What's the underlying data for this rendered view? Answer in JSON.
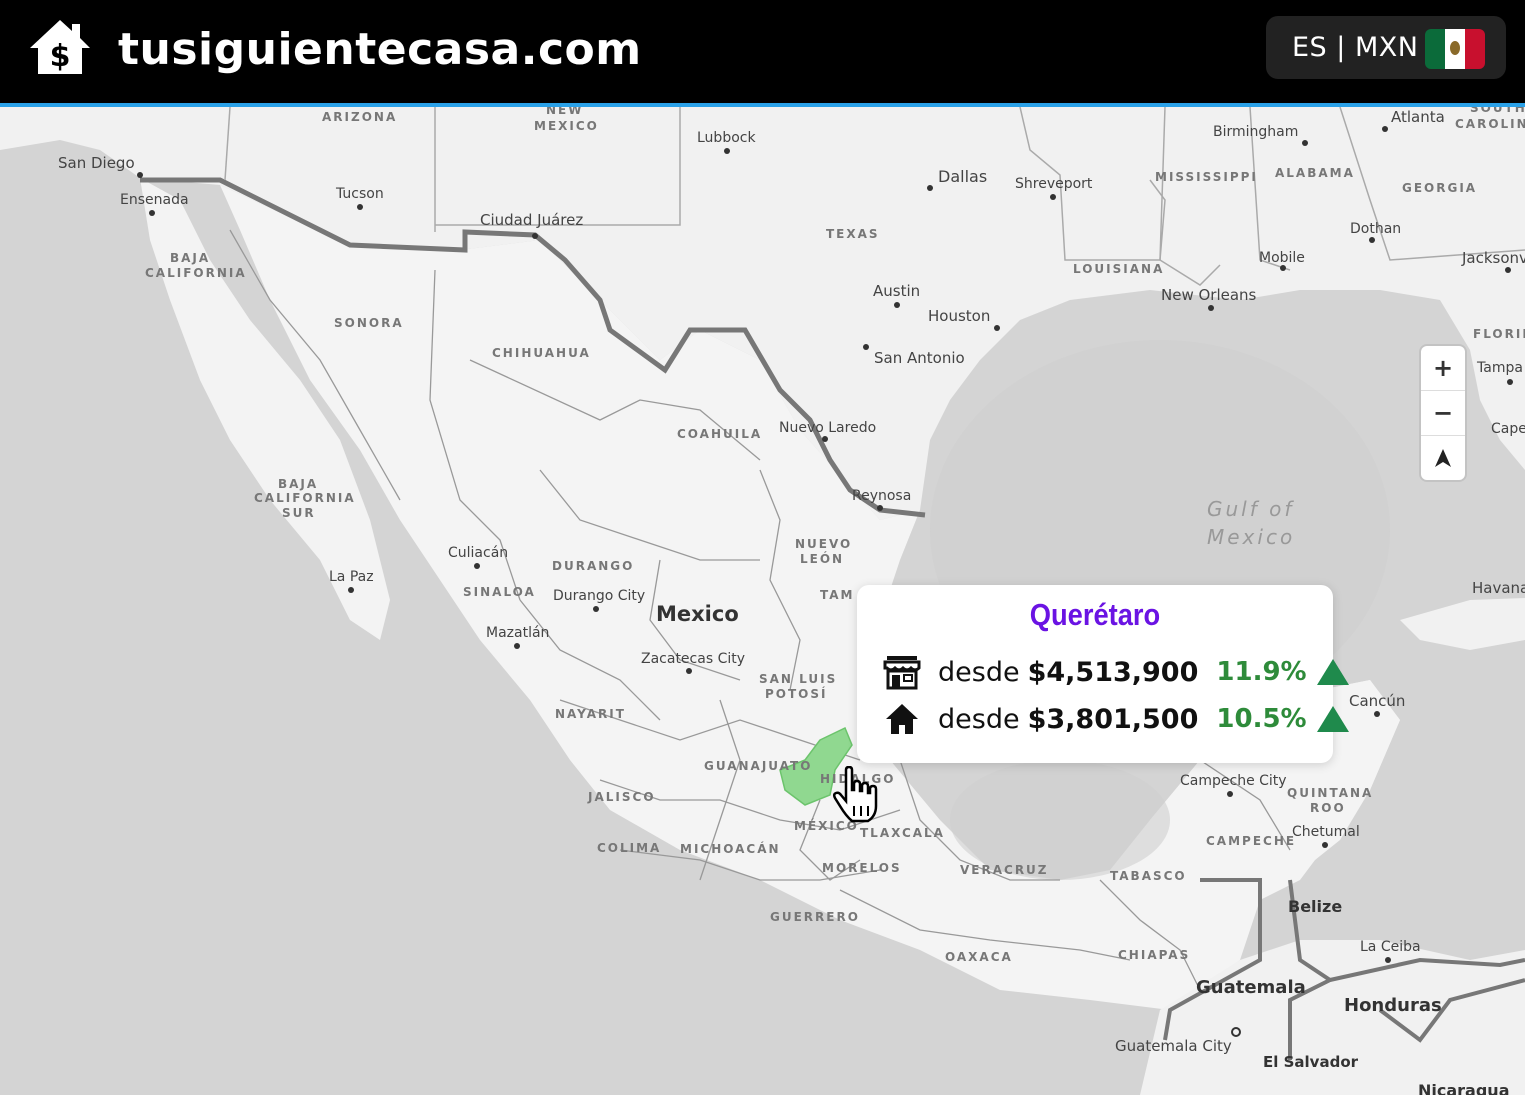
{
  "header": {
    "site_title": "tusiguientecasa.com",
    "locale_label": "ES | MXN",
    "logo_icon": "house-dollar-icon",
    "flag_icon": "mexico-flag-icon"
  },
  "map": {
    "country_labels": {
      "mexico": "Mexico",
      "guatemala": "Guatemala",
      "belize": "Belize",
      "honduras": "Honduras",
      "el_salvador": "El Salvador",
      "nicaragua": "Nicaragua"
    },
    "sea_labels": {
      "gulf_line1": "Gulf of",
      "gulf_line2": "Mexico"
    },
    "state_labels": {
      "arizona": "ARIZONA",
      "new_mexico1": "NEW",
      "new_mexico2": "MEXICO",
      "texas": "TEXAS",
      "louisiana": "LOUISIANA",
      "mississippi": "MISSISSIPPI",
      "alabama": "ALABAMA",
      "georgia": "GEORGIA",
      "south_carolina1": "SOUTH",
      "south_carolina2": "CAROLINA",
      "florida": "FLORID",
      "baja1": "BAJA",
      "baja2": "CALIFORNIA",
      "bcs1": "BAJA",
      "bcs2": "CALIFORNIA",
      "bcs3": "SUR",
      "sonora": "SONORA",
      "chihuahua": "CHIHUAHUA",
      "coahuila": "COAHUILA",
      "nuevo_leon1": "NUEVO",
      "nuevo_leon2": "LEÓN",
      "durango": "DURANGO",
      "sinaloa": "SINALOA",
      "tamaulipas": "TAM",
      "slp1": "SAN LUIS",
      "slp2": "POTOSÍ",
      "nayarit": "NAYARIT",
      "guanajuato": "GUANAJUATO",
      "hidalgo": "HIDALGO",
      "jalisco": "JALISCO",
      "colima": "COLIMA",
      "michoacan": "MICHOACÁN",
      "mexico_state": "MÉXICO",
      "tlaxcala": "TLAXCALA",
      "morelos": "MORELOS",
      "veracruz": "VERACRUZ",
      "guerrero": "GUERRERO",
      "oaxaca": "OAXACA",
      "chiapas": "CHIAPAS",
      "tabasco": "TABASCO",
      "campeche": "CAMPECHE",
      "quintana1": "QUINTANA",
      "quintana2": "ROO"
    },
    "city_labels": {
      "san_diego": "San Diego",
      "ensenada": "Ensenada",
      "tucson": "Tucson",
      "ciudad_juarez": "Ciudad Juárez",
      "lubbock": "Lubbock",
      "dallas": "Dallas",
      "shreveport": "Shreveport",
      "birmingham": "Birmingham",
      "atlanta": "Atlanta",
      "dothan": "Dothan",
      "mobile": "Mobile",
      "jacksonville": "Jacksonv",
      "new_orleans": "New Orleans",
      "austin": "Austin",
      "houston": "Houston",
      "san_antonio": "San Antonio",
      "nuevo_laredo": "Nuevo Laredo",
      "reynosa": "Reynosa",
      "tampa": "Tampa",
      "cape": "Cape",
      "havana": "Havana",
      "culiacan": "Culiacán",
      "la_paz": "La Paz",
      "durango_city": "Durango City",
      "mazatlan": "Mazatlán",
      "zacatecas_city": "Zacatecas City",
      "cancun": "Cancún",
      "campeche_city": "Campeche City",
      "chetumal": "Chetumal",
      "la_ceiba": "La Ceiba",
      "guatemala_city": "Guatemala City"
    },
    "zoom_in": "+",
    "zoom_out": "−",
    "compass": "compass-arrow-icon",
    "highlight_color": "#90d890"
  },
  "popup": {
    "title": "Querétaro",
    "rows": [
      {
        "icon": "store-icon",
        "prefix": "desde",
        "price": "$4,513,900",
        "pct": "11.9%",
        "trend": "up-triangle-icon"
      },
      {
        "icon": "house-icon",
        "prefix": "desde",
        "price": "$3,801,500",
        "pct": "10.5%",
        "trend": "up-triangle-icon"
      }
    ],
    "title_color": "#6a13e3",
    "positive_color": "#2e8b3a"
  }
}
